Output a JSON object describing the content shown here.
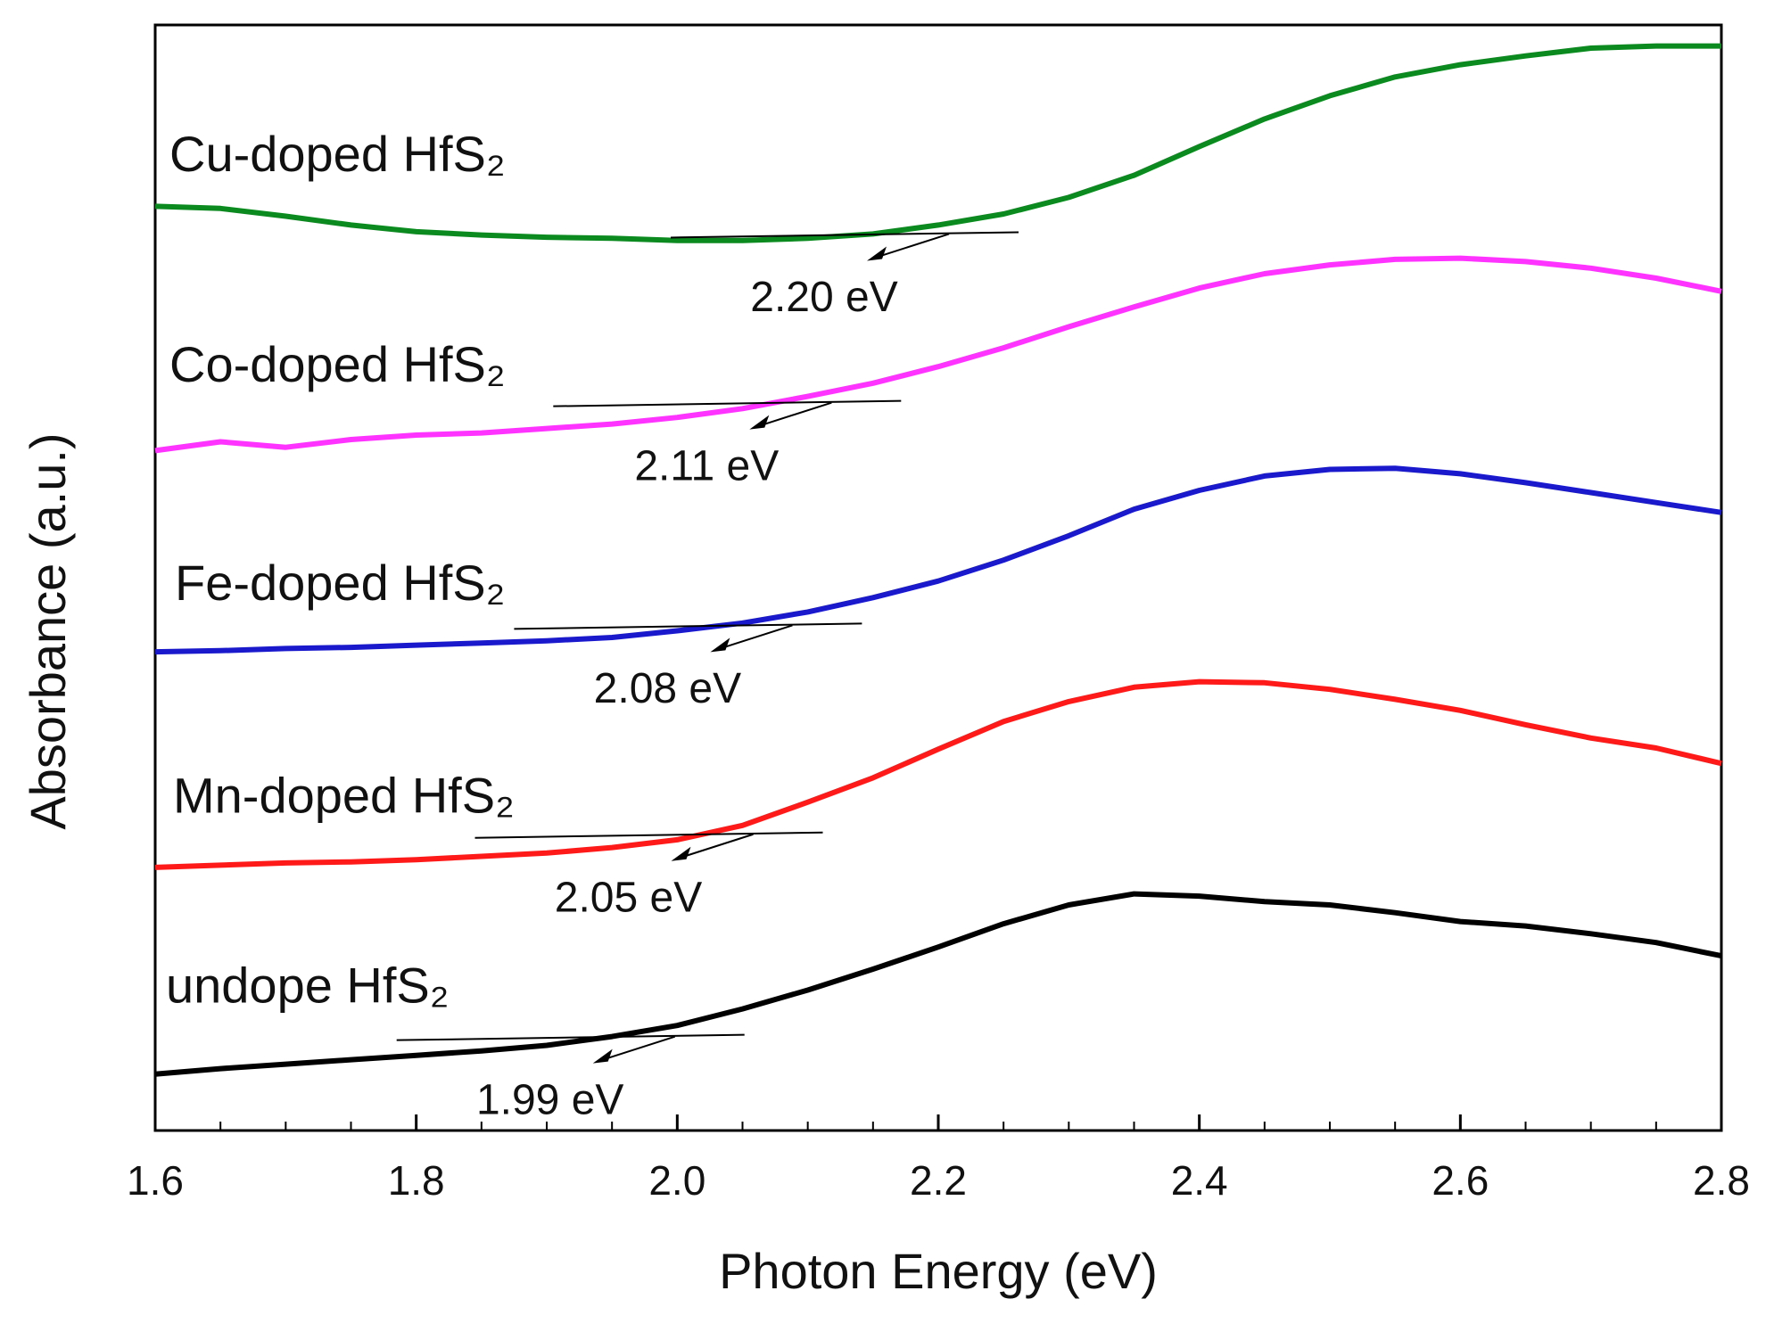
{
  "chart_data": {
    "type": "line",
    "xlabel": "Photon Energy (eV)",
    "ylabel": "Absorbance (a.u.)",
    "x": [
      1.6,
      1.65,
      1.7,
      1.75,
      1.8,
      1.85,
      1.9,
      1.95,
      2.0,
      2.05,
      2.1,
      2.15,
      2.2,
      2.25,
      2.3,
      2.35,
      2.4,
      2.45,
      2.5,
      2.55,
      2.6,
      2.65,
      2.7,
      2.75,
      2.8
    ],
    "xlim": [
      1.6,
      2.8
    ],
    "xticks": [
      1.6,
      1.8,
      {
        "value": 2,
        "label": "2.0"
      },
      2.2,
      2.4,
      2.6,
      2.8
    ],
    "ylim": [
      0,
      100
    ],
    "series": [
      {
        "name": "Cu-doped HfS₂",
        "color": "#0b8a1f",
        "values": [
          83.6,
          83.4,
          82.7,
          81.9,
          81.3,
          81.0,
          80.8,
          80.7,
          80.5,
          80.5,
          80.7,
          81.1,
          81.9,
          82.9,
          84.4,
          86.4,
          89.0,
          91.5,
          93.6,
          95.3,
          96.4,
          97.2,
          97.9,
          98.1,
          98.1
        ]
      },
      {
        "name": "Co-doped HfS₂",
        "color": "#ff33ff",
        "values": [
          61.5,
          62.3,
          61.8,
          62.5,
          62.9,
          63.1,
          63.5,
          63.9,
          64.5,
          65.3,
          66.4,
          67.6,
          69.1,
          70.8,
          72.7,
          74.5,
          76.2,
          77.5,
          78.3,
          78.8,
          78.9,
          78.6,
          78.0,
          77.1,
          75.9
        ]
      },
      {
        "name": "Fe-doped HfS₂",
        "color": "#1a1acc",
        "values": [
          43.3,
          43.4,
          43.6,
          43.7,
          43.9,
          44.1,
          44.3,
          44.6,
          45.2,
          45.9,
          46.9,
          48.2,
          49.7,
          51.6,
          53.8,
          56.2,
          57.9,
          59.2,
          59.8,
          59.9,
          59.4,
          58.6,
          57.7,
          56.8,
          55.9
        ]
      },
      {
        "name": "Mn-doped HfS₂",
        "color": "#ff1a1a",
        "values": [
          23.8,
          24.0,
          24.2,
          24.3,
          24.5,
          24.8,
          25.1,
          25.6,
          26.3,
          27.6,
          29.7,
          31.9,
          34.5,
          37.0,
          38.8,
          40.1,
          40.6,
          40.5,
          39.9,
          39.0,
          38.0,
          36.7,
          35.5,
          34.6,
          33.2
        ]
      },
      {
        "name": "undope HfS₂",
        "color": "#000000",
        "values": [
          5.1,
          5.6,
          6.0,
          6.4,
          6.8,
          7.2,
          7.7,
          8.5,
          9.5,
          11.0,
          12.7,
          14.6,
          16.6,
          18.7,
          20.4,
          21.4,
          21.2,
          20.7,
          20.4,
          19.7,
          18.9,
          18.5,
          17.8,
          17.0,
          15.8
        ]
      }
    ],
    "annotations": [
      {
        "label": "2.20 eV",
        "value": 2.2
      },
      {
        "label": "2.11 eV",
        "value": 2.11
      },
      {
        "label": "2.08 eV",
        "value": 2.08
      },
      {
        "label": "2.05 eV",
        "value": 2.05
      },
      {
        "label": "1.99 eV",
        "value": 1.99
      }
    ]
  }
}
